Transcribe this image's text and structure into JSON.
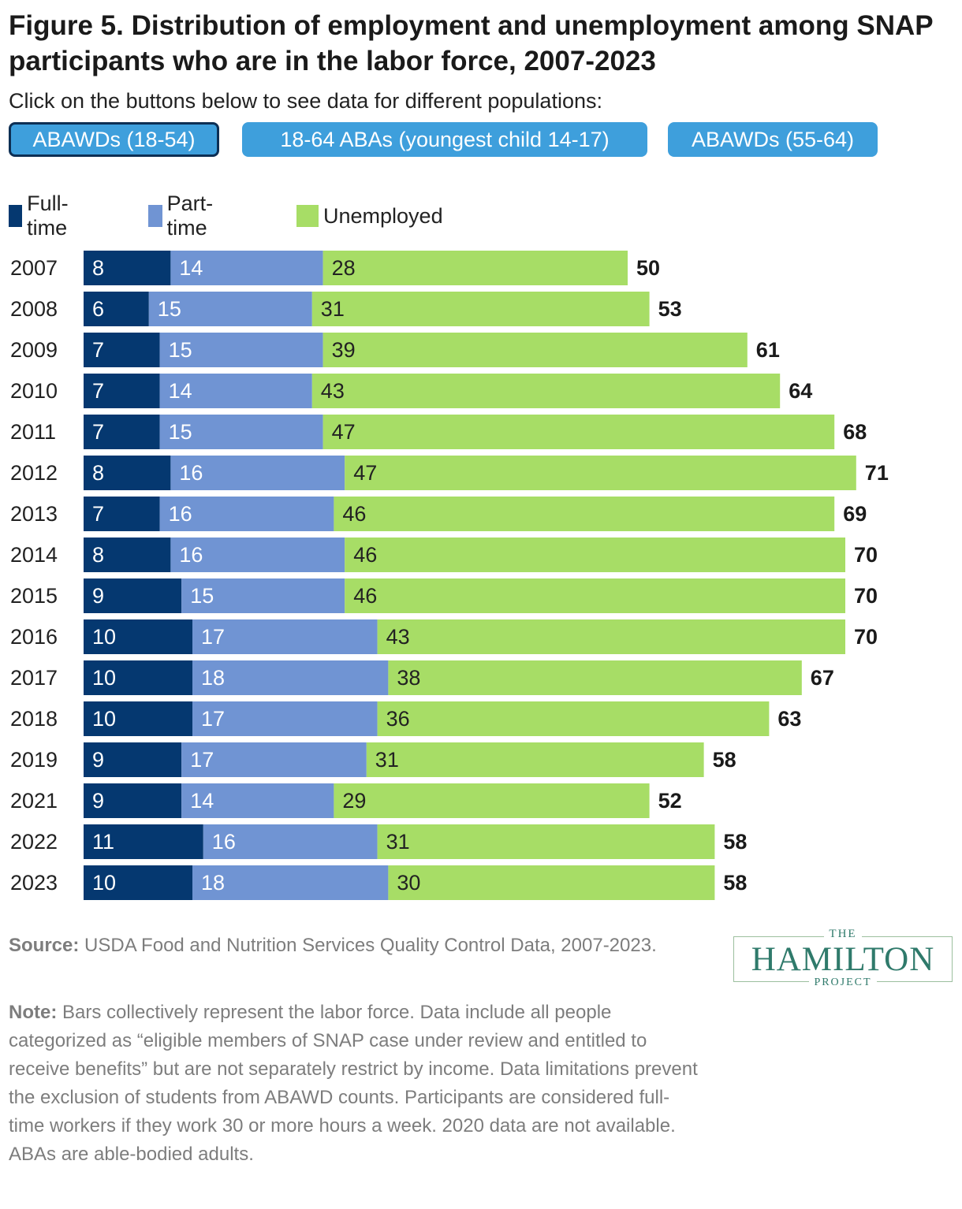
{
  "title": "Figure 5. Distribution of employment and unemployment among SNAP participants who are in the labor force, 2007-2023",
  "subtitle": "Click on the buttons below to see data for different populations:",
  "buttons": [
    {
      "label": "ABAWDs (18-54)",
      "active": true
    },
    {
      "label": "18-64 ABAs (youngest child 14-17)",
      "active": false
    },
    {
      "label": "ABAWDs (55-64)",
      "active": false
    }
  ],
  "legend": [
    {
      "label": "Full-time",
      "color": "#053870"
    },
    {
      "label": "Part-time",
      "color": "#7094d3"
    },
    {
      "label": "Unemployed",
      "color": "#a7dd66"
    }
  ],
  "chart_data": {
    "type": "bar",
    "orientation": "horizontal",
    "stacked": true,
    "categories": [
      "2007",
      "2008",
      "2009",
      "2010",
      "2011",
      "2012",
      "2013",
      "2014",
      "2015",
      "2016",
      "2017",
      "2018",
      "2019",
      "2021",
      "2022",
      "2023"
    ],
    "series": [
      {
        "name": "Full-time",
        "color": "#053870",
        "values": [
          8,
          6,
          7,
          7,
          7,
          8,
          7,
          8,
          9,
          10,
          10,
          10,
          9,
          9,
          11,
          10
        ]
      },
      {
        "name": "Part-time",
        "color": "#7094d3",
        "values": [
          14,
          15,
          15,
          14,
          15,
          16,
          16,
          16,
          15,
          17,
          18,
          17,
          17,
          14,
          16,
          18
        ]
      },
      {
        "name": "Unemployed",
        "color": "#a7dd66",
        "values": [
          28,
          31,
          39,
          43,
          47,
          47,
          46,
          46,
          46,
          43,
          38,
          36,
          31,
          29,
          31,
          30
        ]
      }
    ],
    "totals": [
      50,
      53,
      61,
      64,
      68,
      71,
      69,
      70,
      70,
      70,
      67,
      63,
      58,
      52,
      58,
      58
    ],
    "xlim": [
      0,
      75
    ],
    "legend_position": "top-left",
    "grid": false
  },
  "source": {
    "label": "Source:",
    "text": "USDA Food and Nutrition Services Quality Control Data, 2007-2023."
  },
  "note": {
    "label": "Note:",
    "text": "Bars collectively represent the labor force. Data include all people categorized as “eligible members of SNAP case under review and entitled to receive benefits” but are not separately restrict by income. Data limitations prevent the exclusion of students from ABAWD counts. Participants are considered full-time workers if they work 30 or more hours a week. 2020 data are not available. ABAs are able-bodied adults."
  },
  "logo": {
    "top": "THE",
    "main": "HAMILTON",
    "bottom": "PROJECT"
  }
}
